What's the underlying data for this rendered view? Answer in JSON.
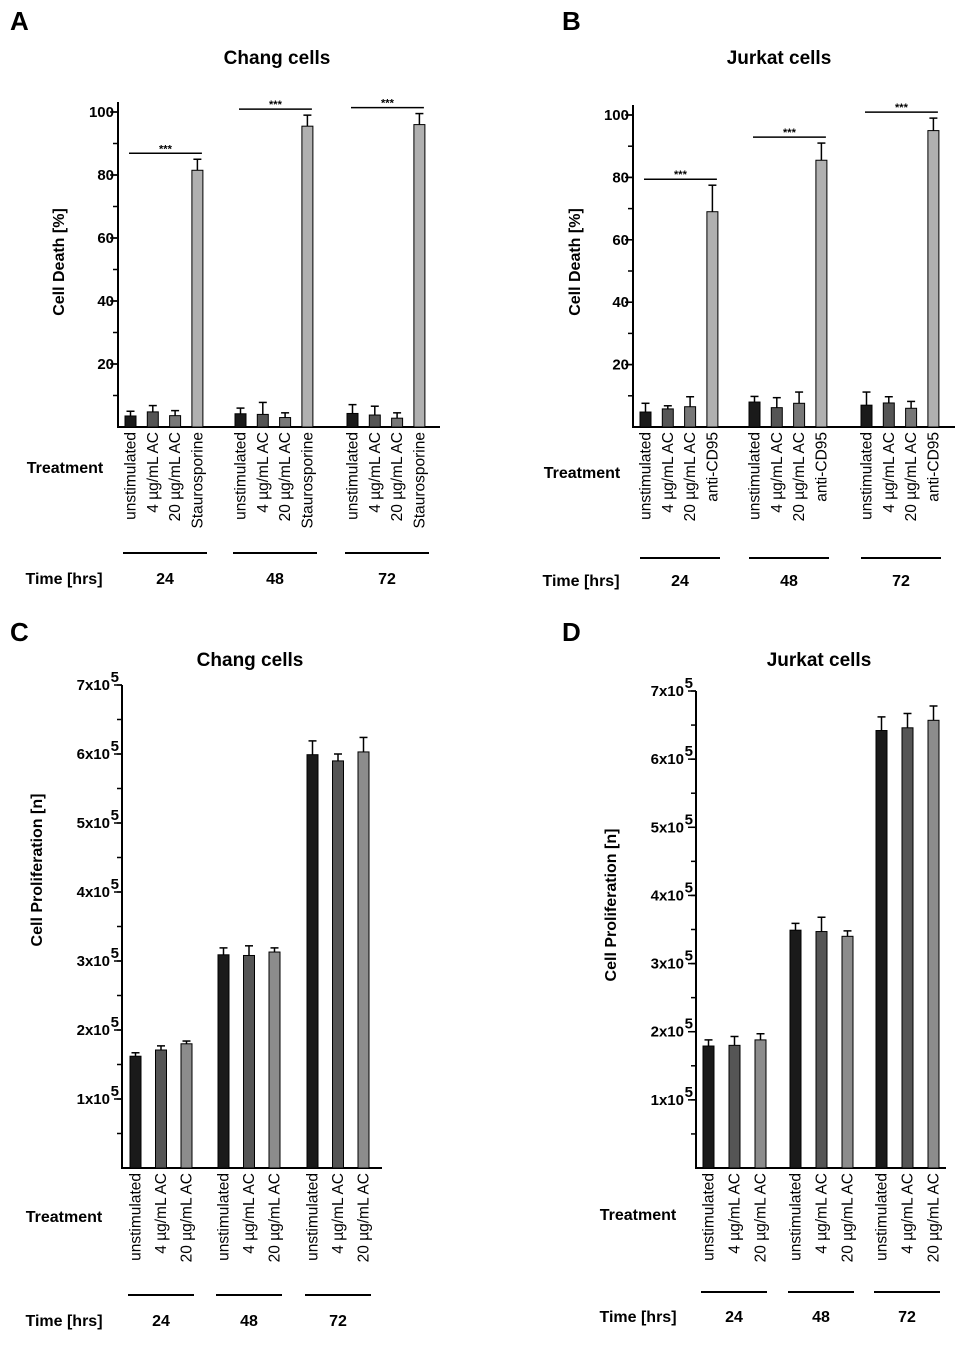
{
  "chart_data": [
    {
      "panel": "A",
      "type": "bar",
      "title": "Chang cells",
      "ylabel": "Cell Death [%]",
      "ylim": [
        0,
        100
      ],
      "yticks": [
        "20",
        "40",
        "60",
        "80",
        "100"
      ],
      "treatment_label": "Treatment",
      "time_label": "Time [hrs]",
      "categories": [
        "unstimulated",
        "4 µg/mL AC",
        "20 µg/mL AC",
        "Staurosporine"
      ],
      "groups": [
        {
          "time": "24",
          "values": [
            3.5,
            4.8,
            3.6,
            81.5
          ],
          "errors": [
            1.5,
            2.0,
            1.6,
            3.5
          ],
          "significance": "***"
        },
        {
          "time": "48",
          "values": [
            4.2,
            4.0,
            3.0,
            95.5
          ],
          "errors": [
            1.8,
            3.8,
            1.5,
            3.5
          ],
          "significance": "***"
        },
        {
          "time": "72",
          "values": [
            4.3,
            3.8,
            2.8,
            96.0
          ],
          "errors": [
            2.8,
            2.8,
            1.7,
            3.5
          ],
          "significance": "***"
        }
      ],
      "colors": [
        "#1a1a1a",
        "#555555",
        "#777777",
        "#b0b0b0"
      ]
    },
    {
      "panel": "B",
      "type": "bar",
      "title": "Jurkat cells",
      "ylabel": "Cell Death [%]",
      "ylim": [
        0,
        100
      ],
      "yticks": [
        "20",
        "40",
        "60",
        "80",
        "100"
      ],
      "treatment_label": "Treatment",
      "time_label": "Time [hrs]",
      "categories": [
        "unstimulated",
        "4 µg/mL AC",
        "20 µg/mL AC",
        "anti-CD95"
      ],
      "groups": [
        {
          "time": "24",
          "values": [
            4.8,
            5.8,
            6.5,
            69.0
          ],
          "errors": [
            2.8,
            1.0,
            3.2,
            8.5
          ],
          "significance": "***"
        },
        {
          "time": "48",
          "values": [
            8.0,
            6.2,
            7.6,
            85.5
          ],
          "errors": [
            1.8,
            3.2,
            3.6,
            5.5
          ],
          "significance": "***"
        },
        {
          "time": "72",
          "values": [
            7.0,
            7.7,
            6.0,
            95.0
          ],
          "errors": [
            4.2,
            2.0,
            2.2,
            4.0
          ],
          "significance": "***"
        }
      ],
      "colors": [
        "#1a1a1a",
        "#555555",
        "#777777",
        "#b0b0b0"
      ]
    },
    {
      "panel": "C",
      "type": "bar",
      "title": "Chang cells",
      "ylabel": "Cell Proliferation [n]",
      "ylim": [
        0,
        700000
      ],
      "yticks": [
        "1x10",
        "2x10",
        "3x10",
        "4x10",
        "5x10",
        "6x10",
        "7x10"
      ],
      "ytick_exponent": "5",
      "treatment_label": "Treatment",
      "time_label": "Time [hrs]",
      "categories": [
        "unstimulated",
        "4 µg/mL AC",
        "20 µg/mL AC"
      ],
      "groups": [
        {
          "time": "24",
          "values": [
            162000,
            171000,
            180000
          ],
          "errors": [
            5000,
            6000,
            4000
          ]
        },
        {
          "time": "48",
          "values": [
            309000,
            308000,
            313000
          ],
          "errors": [
            10000,
            14000,
            6000
          ]
        },
        {
          "time": "72",
          "values": [
            599000,
            590000,
            603000
          ],
          "errors": [
            20000,
            10000,
            21000
          ]
        }
      ],
      "colors": [
        "#1a1a1a",
        "#555555",
        "#8c8c8c"
      ]
    },
    {
      "panel": "D",
      "type": "bar",
      "title": "Jurkat cells",
      "ylabel": "Cell Proliferation [n]",
      "ylim": [
        0,
        700000
      ],
      "yticks": [
        "1x10",
        "2x10",
        "3x10",
        "4x10",
        "5x10",
        "6x10",
        "7x10"
      ],
      "ytick_exponent": "5",
      "treatment_label": "Treatment",
      "time_label": "Time [hrs]",
      "categories": [
        "unstimulated",
        "4 µg/mL AC",
        "20 µg/mL AC"
      ],
      "groups": [
        {
          "time": "24",
          "values": [
            179000,
            180000,
            188000
          ],
          "errors": [
            9000,
            13000,
            9000
          ]
        },
        {
          "time": "48",
          "values": [
            349000,
            347000,
            340000
          ],
          "errors": [
            10000,
            21000,
            8000
          ]
        },
        {
          "time": "72",
          "values": [
            642000,
            646000,
            657000
          ],
          "errors": [
            20000,
            21000,
            21000
          ]
        }
      ],
      "colors": [
        "#1a1a1a",
        "#555555",
        "#8c8c8c"
      ]
    }
  ]
}
